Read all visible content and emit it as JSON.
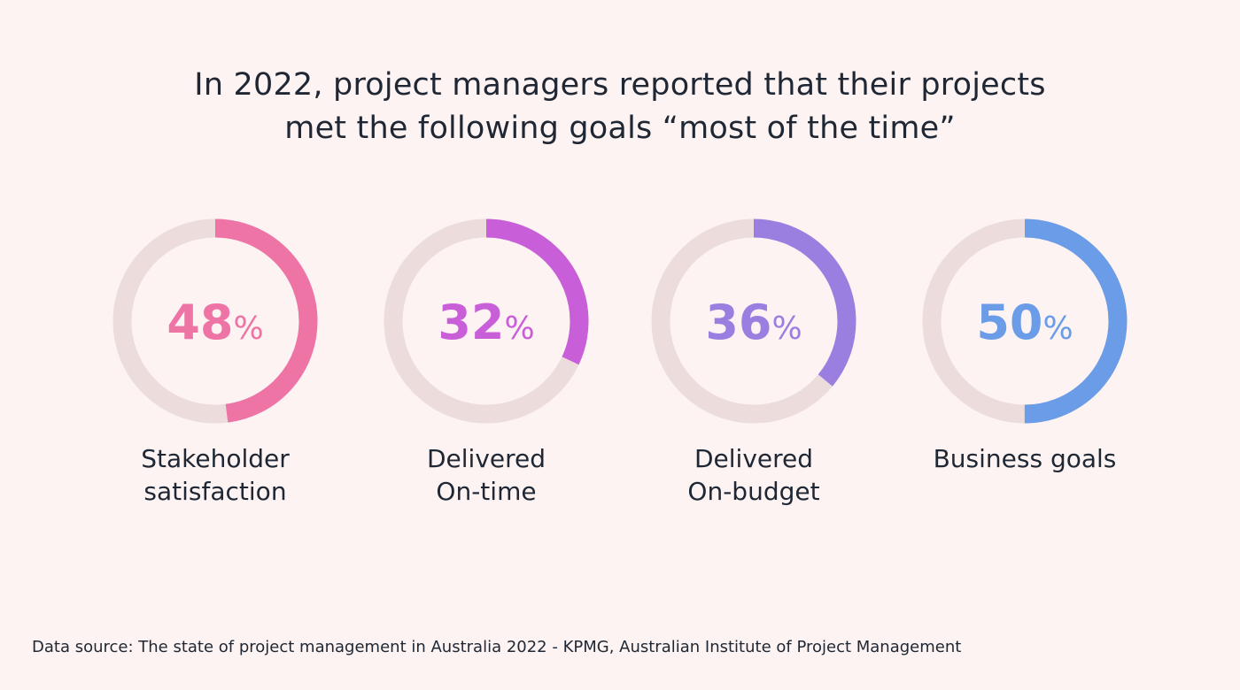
{
  "title_lines": [
    "In 2022, project managers reported that their projects",
    "met the following goals “most of the time”"
  ],
  "source_text": "Data source: The state of project management in Australia 2022 - KPMG, Australian Institute of Project Management",
  "colors": {
    "background": "#fdf3f3",
    "track": "#ecdcdc",
    "text": "#1e2733"
  },
  "chart_data": {
    "type": "pie",
    "title": "In 2022, project managers reported that their projects met the following goals “most of the time”",
    "unit": "%",
    "items": [
      {
        "label_lines": [
          "Stakeholder",
          "satisfaction"
        ],
        "value": 48,
        "value_text": "48",
        "percent_text": "%",
        "color": "#ef74a6"
      },
      {
        "label_lines": [
          "Delivered",
          "On-time"
        ],
        "value": 32,
        "value_text": "32",
        "percent_text": "%",
        "color": "#c95fd8"
      },
      {
        "label_lines": [
          "Delivered",
          "On-budget"
        ],
        "value": 36,
        "value_text": "36",
        "percent_text": "%",
        "color": "#9a7fe0"
      },
      {
        "label_lines": [
          "Business goals"
        ],
        "value": 50,
        "value_text": "50",
        "percent_text": "%",
        "color": "#6b9ce8"
      }
    ]
  }
}
